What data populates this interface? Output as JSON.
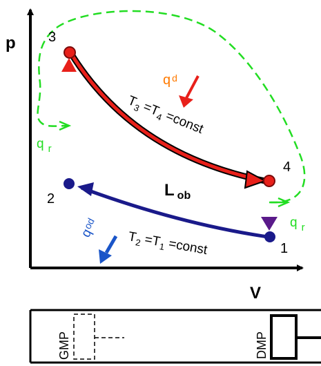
{
  "axes": {
    "y_label": "p",
    "x_label": "V"
  },
  "points": {
    "p1": "1",
    "p2": "2",
    "p3": "3",
    "p4": "4"
  },
  "process_labels": {
    "isotherm_hot": {
      "T": "T",
      "sub1": "3",
      "mid": " =T",
      "sub2": "4",
      "tail": " =const"
    },
    "isotherm_cold": {
      "T": "T",
      "sub1": "2",
      "mid": " =T",
      "sub2": "1",
      "tail": " =const"
    }
  },
  "work": {
    "main": "L",
    "sub": "ob"
  },
  "heat": {
    "qd": {
      "main": "q",
      "sub": "d"
    },
    "qod": {
      "main": "q",
      "sub": "od"
    },
    "qr_left": {
      "main": "q",
      "sub": "r"
    },
    "qr_right": {
      "main": "q",
      "sub": "r"
    }
  },
  "piston": {
    "left_label": "GMP",
    "right_label": "DMP"
  },
  "colors": {
    "hot": "#e8201a",
    "cold": "#1a1a8a",
    "regen": "#22dd22",
    "qd_arrow": "#e8201a",
    "qd_label": "#ff7a00",
    "qod_arrow": "#1a55c8",
    "qod_label": "#1a55c8"
  }
}
